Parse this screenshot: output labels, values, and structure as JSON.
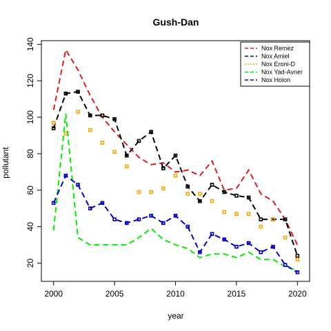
{
  "chart_data": {
    "type": "line",
    "title": "Gush-Dan",
    "xlabel": "year",
    "ylabel": "pollutant",
    "xlim": [
      1999,
      2021
    ],
    "ylim": [
      10,
      142
    ],
    "xticks": [
      2000,
      2005,
      2010,
      2015,
      2020
    ],
    "yticks": [
      20,
      40,
      60,
      80,
      100,
      120,
      140
    ],
    "legend_position": "top-right",
    "x": [
      2000,
      2001,
      2002,
      2003,
      2004,
      2005,
      2006,
      2007,
      2008,
      2009,
      2010,
      2011,
      2012,
      2013,
      2014,
      2015,
      2016,
      2017,
      2018,
      2019,
      2020
    ],
    "series": [
      {
        "name": "Nox Remez",
        "color": "#e41a1c",
        "style": "line",
        "values": [
          104,
          137,
          126,
          112,
          100,
          92,
          85,
          78,
          74,
          75,
          70,
          71,
          68,
          76,
          60,
          61,
          71,
          58,
          54,
          44,
          30
        ]
      },
      {
        "name": "Nox Amiel",
        "color": "#000000",
        "style": "line-points",
        "values": [
          94,
          113,
          114,
          101,
          101,
          99,
          79,
          87,
          92,
          72,
          79,
          62,
          54,
          63,
          59,
          57,
          56,
          44,
          44,
          44,
          24
        ]
      },
      {
        "name": "Nox Eroni-D",
        "color": "#ffa500",
        "style": "points",
        "values": [
          97,
          91,
          103,
          93,
          86,
          81,
          73,
          59,
          59,
          61,
          68,
          58,
          58,
          54,
          48,
          47,
          47,
          40,
          44,
          34,
          22
        ]
      },
      {
        "name": "Nox Yad-Avner",
        "color": "#00ee00",
        "style": "line",
        "values": [
          38,
          102,
          34,
          30,
          30,
          30,
          30,
          34,
          39,
          33,
          30,
          28,
          23,
          25,
          25,
          23,
          26,
          22,
          22,
          18,
          16
        ]
      },
      {
        "name": "Nox Holon",
        "color": "#0000cd",
        "style": "line-points",
        "values": [
          53,
          68,
          63,
          50,
          53,
          44,
          42,
          44,
          46,
          42,
          46,
          40,
          26,
          36,
          33,
          29,
          31,
          26,
          29,
          19,
          15
        ]
      }
    ]
  }
}
